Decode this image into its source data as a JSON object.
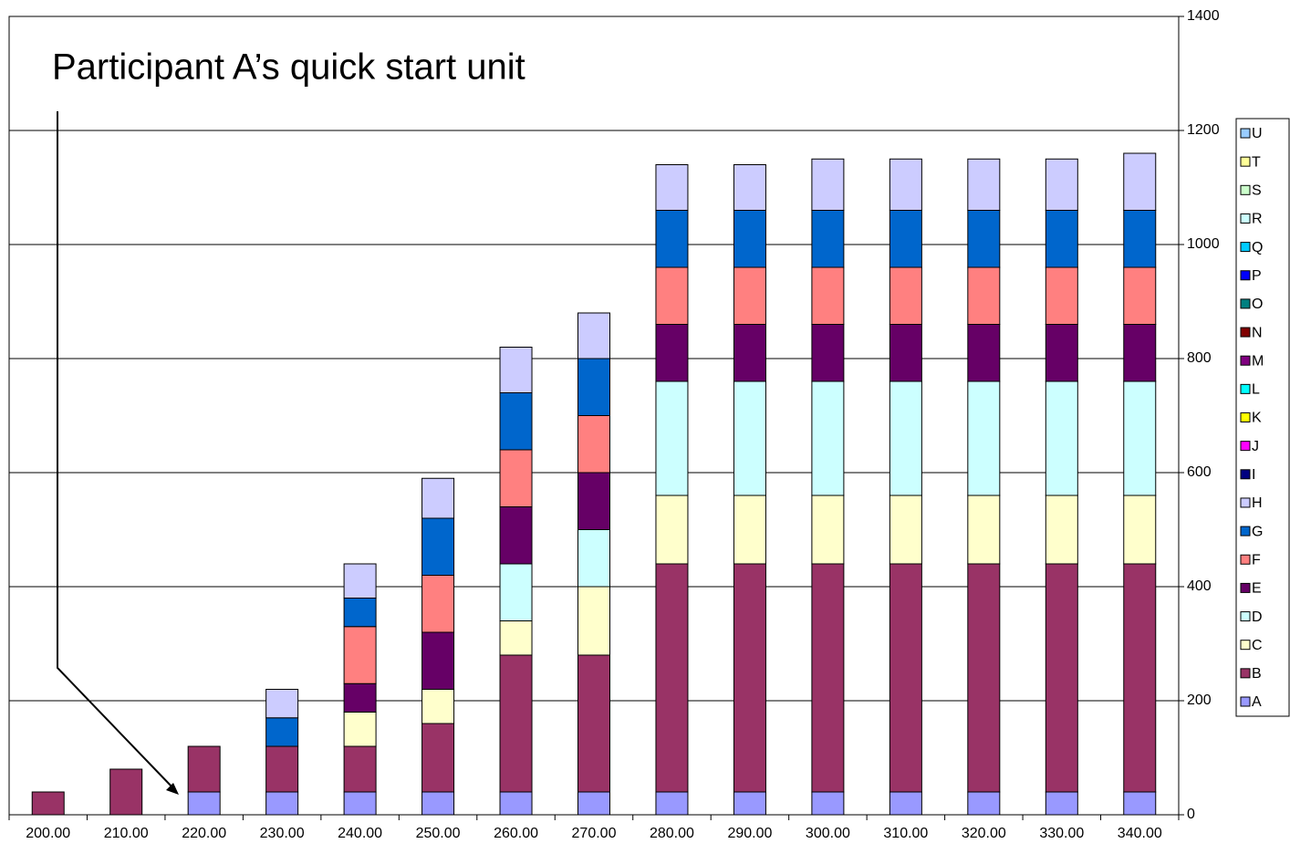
{
  "chart_data": {
    "type": "stacked_bar",
    "annotation": "Participant A’s quick start unit",
    "categories": [
      "200.00",
      "210.00",
      "220.00",
      "230.00",
      "240.00",
      "250.00",
      "260.00",
      "270.00",
      "280.00",
      "290.00",
      "300.00",
      "310.00",
      "320.00",
      "330.00",
      "340.00"
    ],
    "series": [
      {
        "name": "A",
        "color": "#9999ff",
        "values": [
          0,
          0,
          40,
          40,
          40,
          40,
          40,
          40,
          40,
          40,
          40,
          40,
          40,
          40,
          40
        ]
      },
      {
        "name": "B",
        "color": "#993366",
        "values": [
          40,
          80,
          80,
          80,
          80,
          120,
          240,
          240,
          400,
          400,
          400,
          400,
          400,
          400,
          400
        ]
      },
      {
        "name": "C",
        "color": "#ffffcc",
        "values": [
          0,
          0,
          0,
          0,
          60,
          60,
          60,
          120,
          120,
          120,
          120,
          120,
          120,
          120,
          120
        ]
      },
      {
        "name": "D",
        "color": "#ccffff",
        "values": [
          0,
          0,
          0,
          0,
          0,
          0,
          100,
          100,
          200,
          200,
          200,
          200,
          200,
          200,
          200
        ]
      },
      {
        "name": "E",
        "color": "#660066",
        "values": [
          0,
          0,
          0,
          0,
          50,
          100,
          100,
          100,
          100,
          100,
          100,
          100,
          100,
          100,
          100
        ]
      },
      {
        "name": "F",
        "color": "#ff8080",
        "values": [
          0,
          0,
          0,
          0,
          100,
          100,
          100,
          100,
          100,
          100,
          100,
          100,
          100,
          100,
          100
        ]
      },
      {
        "name": "G",
        "color": "#0066cc",
        "values": [
          0,
          0,
          0,
          50,
          50,
          100,
          100,
          100,
          100,
          100,
          100,
          100,
          100,
          100,
          100
        ]
      },
      {
        "name": "H",
        "color": "#ccccff",
        "values": [
          0,
          0,
          0,
          50,
          60,
          70,
          80,
          80,
          80,
          80,
          90,
          90,
          90,
          90,
          100
        ]
      },
      {
        "name": "I",
        "color": "#000080",
        "values": [
          0,
          0,
          0,
          0,
          0,
          0,
          0,
          0,
          0,
          0,
          0,
          0,
          0,
          0,
          0
        ]
      },
      {
        "name": "J",
        "color": "#ff00ff",
        "values": [
          0,
          0,
          0,
          0,
          0,
          0,
          0,
          0,
          0,
          0,
          0,
          0,
          0,
          0,
          0
        ]
      },
      {
        "name": "K",
        "color": "#ffff00",
        "values": [
          0,
          0,
          0,
          0,
          0,
          0,
          0,
          0,
          0,
          0,
          0,
          0,
          0,
          0,
          0
        ]
      },
      {
        "name": "L",
        "color": "#00ffff",
        "values": [
          0,
          0,
          0,
          0,
          0,
          0,
          0,
          0,
          0,
          0,
          0,
          0,
          0,
          0,
          0
        ]
      },
      {
        "name": "M",
        "color": "#800080",
        "values": [
          0,
          0,
          0,
          0,
          0,
          0,
          0,
          0,
          0,
          0,
          0,
          0,
          0,
          0,
          0
        ]
      },
      {
        "name": "N",
        "color": "#800000",
        "values": [
          0,
          0,
          0,
          0,
          0,
          0,
          0,
          0,
          0,
          0,
          0,
          0,
          0,
          0,
          0
        ]
      },
      {
        "name": "O",
        "color": "#008080",
        "values": [
          0,
          0,
          0,
          0,
          0,
          0,
          0,
          0,
          0,
          0,
          0,
          0,
          0,
          0,
          0
        ]
      },
      {
        "name": "P",
        "color": "#0000ff",
        "values": [
          0,
          0,
          0,
          0,
          0,
          0,
          0,
          0,
          0,
          0,
          0,
          0,
          0,
          0,
          0
        ]
      },
      {
        "name": "Q",
        "color": "#00ccff",
        "values": [
          0,
          0,
          0,
          0,
          0,
          0,
          0,
          0,
          0,
          0,
          0,
          0,
          0,
          0,
          0
        ]
      },
      {
        "name": "R",
        "color": "#ccffff",
        "values": [
          0,
          0,
          0,
          0,
          0,
          0,
          0,
          0,
          0,
          0,
          0,
          0,
          0,
          0,
          0
        ]
      },
      {
        "name": "S",
        "color": "#ccffcc",
        "values": [
          0,
          0,
          0,
          0,
          0,
          0,
          0,
          0,
          0,
          0,
          0,
          0,
          0,
          0,
          0
        ]
      },
      {
        "name": "T",
        "color": "#ffff99",
        "values": [
          0,
          0,
          0,
          0,
          0,
          0,
          0,
          0,
          0,
          0,
          0,
          0,
          0,
          0,
          0
        ]
      },
      {
        "name": "U",
        "color": "#99ccff",
        "values": [
          0,
          0,
          0,
          0,
          0,
          0,
          0,
          0,
          0,
          0,
          0,
          0,
          0,
          0,
          0
        ]
      }
    ],
    "ylim": [
      0,
      1400
    ],
    "yticks": [
      0,
      200,
      400,
      600,
      800,
      1000,
      1200,
      1400
    ],
    "grid": true,
    "y_axis_side": "right",
    "legend": "right"
  }
}
